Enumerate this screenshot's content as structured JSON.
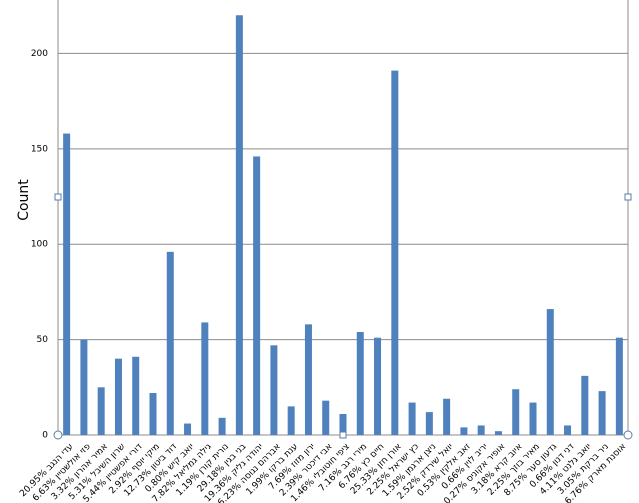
{
  "chart_data": {
    "type": "bar",
    "y_label": "Count",
    "categories": [
      "20.95% עדי הנגב",
      "6.63% פזי אולשטיין",
      "3.32% אמיר אהרון",
      "5.31% שרון השיבל",
      "5.44% דורי אפשטיין",
      "2.92% מיקי יוסף",
      "12.73% דוד ביטון",
      "0.80% יואב קיש",
      "7.82% גילה גמליאל",
      "1.19% נורית קורן",
      "29.18% בני בגין",
      "19.36% יהודה גליק",
      "6.23% אברהם נגוסה",
      "1.99% ענת ברקו",
      "7.69% ירון מזוז",
      "2.39% אבי דיכטר",
      "1.46% ציפי חוטובלי",
      "7.16% מירי רגב",
      "6.76% חיים כץ",
      "25.33% אורן חזן",
      "2.25% כץ ישראל",
      "1.59% ניצן ארגמן",
      "2.52% יואל שירדק",
      "0.53% זאב אלקין",
      "0.66% יריב לוין",
      "0.27% אופיר אקוניס",
      "3.18% איוב קרא",
      "2.25% מאיר בוזך",
      "8.75% גדעון סער",
      "0.66% דני דנון",
      "4.11% יואב גלנט",
      "3.05% ניר ברקת",
      "6.76% אוסנת מארק"
    ],
    "values": [
      158,
      50,
      25,
      40,
      41,
      22,
      96,
      6,
      59,
      9,
      220,
      146,
      47,
      15,
      58,
      18,
      11,
      54,
      51,
      191,
      17,
      12,
      19,
      4,
      5,
      2,
      24,
      17,
      66,
      5,
      31,
      23,
      51
    ],
    "color": "#4f81bd",
    "ylim": [
      0,
      228
    ],
    "yticks": [
      0,
      50,
      100,
      150,
      200
    ],
    "grid": true
  }
}
